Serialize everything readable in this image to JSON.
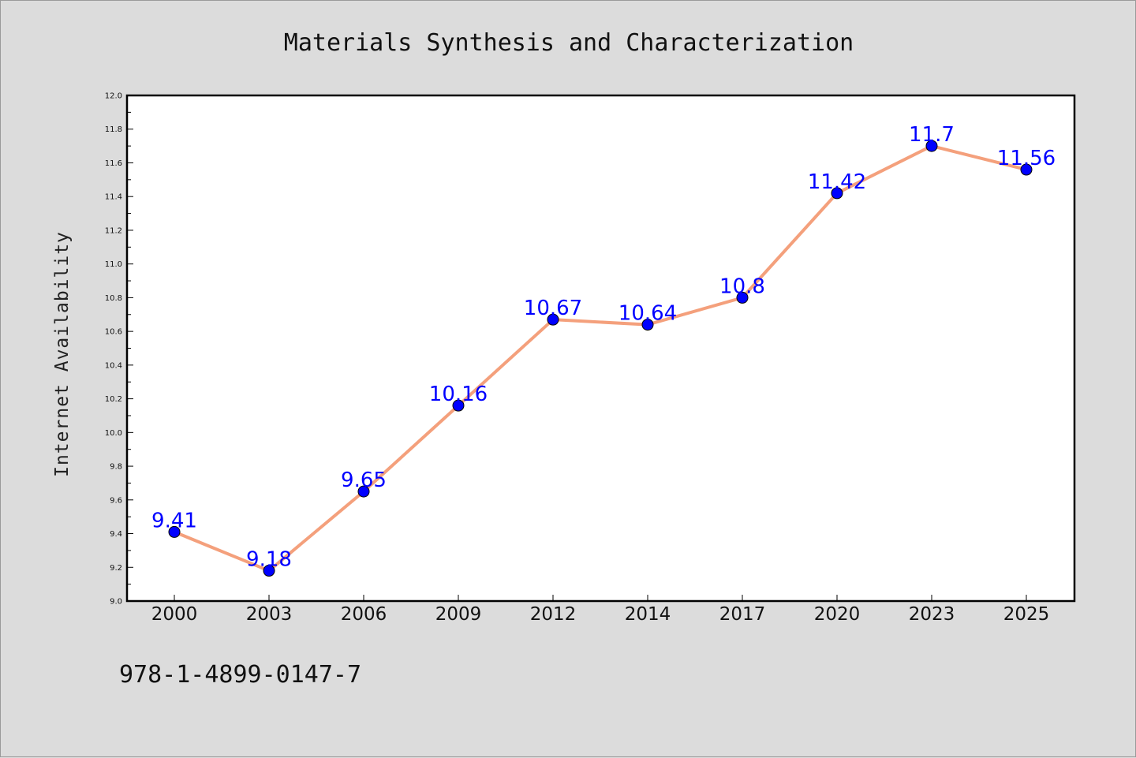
{
  "chart_data": {
    "type": "line",
    "title": "Materials Synthesis and Characterization",
    "xlabel": "",
    "ylabel": "Internet Availability",
    "x": [
      "2000",
      "2003",
      "2006",
      "2009",
      "2012",
      "2014",
      "2017",
      "2020",
      "2023",
      "2025"
    ],
    "series": [
      {
        "values": [
          9.41,
          9.18,
          9.65,
          10.16,
          10.67,
          10.64,
          10.8,
          11.42,
          11.7,
          11.56
        ],
        "data_labels": [
          "9.41",
          "9.18",
          "9.65",
          "10.16",
          "10.67",
          "10.64",
          "10.8",
          "11.42",
          "11.7",
          "11.56"
        ],
        "line_color": "#f4a07c",
        "marker_color": "#0000ff"
      }
    ],
    "ylim": [
      9.0,
      12.0
    ],
    "yticks": [
      "9.0",
      "9.2",
      "9.4",
      "9.6",
      "9.8",
      "10.0",
      "10.2",
      "10.4",
      "10.6",
      "10.8",
      "11.0",
      "11.2",
      "11.4",
      "11.6",
      "11.8",
      "12.0"
    ],
    "grid": false,
    "legend": "none"
  },
  "footer": {
    "isbn": "978-1-4899-0147-7"
  },
  "colors": {
    "background": "#dcdcdc",
    "plot_area": "#ffffff",
    "label": "#0000ff"
  }
}
